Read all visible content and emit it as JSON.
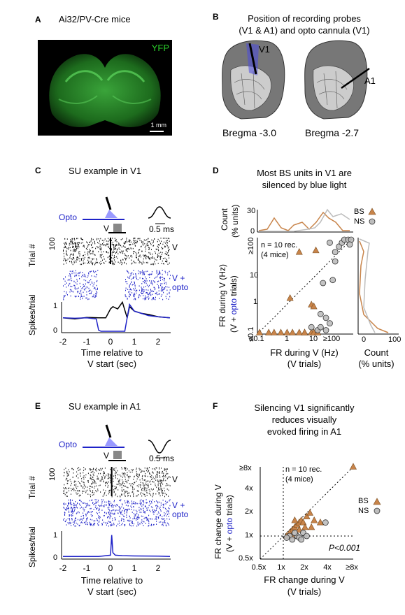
{
  "panelA": {
    "label": "A",
    "title": "Ai32/PV-Cre mice",
    "fluor_label": "YFP",
    "scalebar": "1 mm"
  },
  "panelB": {
    "label": "B",
    "title_line1": "Position of recording probes",
    "title_line2": "(V1 & A1) and opto cannula (V1)",
    "left_region": "V1",
    "right_region": "A1",
    "left_bregma": "Bregma -3.0",
    "right_bregma": "Bregma -2.7"
  },
  "panelC": {
    "label": "C",
    "title": "SU example in V1",
    "opto_label": "Opto",
    "stim_label": "V",
    "waveform_scale": "0.5 ms",
    "cond_v": "V",
    "cond_opto_line1": "V +",
    "cond_opto_line2": "opto",
    "ylabel_raster": "Trial #",
    "ylabel_psth": "Spikes/trial",
    "raster_tick": "100",
    "psth_ticks": [
      "0",
      "1"
    ],
    "xticks": [
      "-2",
      "-1",
      "0",
      "1",
      "2"
    ],
    "xlabel_line1": "Time relative to",
    "xlabel_line2": "V start (sec)"
  },
  "panelD": {
    "label": "D",
    "title_line1": "Most BS units in V1 are",
    "title_line2": "silenced by blue light",
    "note_line1": "n = 10 rec.",
    "note_line2": "(4 mice)",
    "legend_bs": "BS",
    "legend_ns": "NS",
    "top_ylabel_line1": "Count",
    "top_ylabel_line2": "(% units)",
    "top_yticks": [
      "0",
      "30"
    ],
    "yticks": [
      "≤0.1",
      "1",
      "10",
      "≥100"
    ],
    "xticks": [
      "≤0.1",
      "1",
      "10",
      "≥100"
    ],
    "ylabel_line1": "FR during V (Hz)",
    "ylabel_line2_pre": "(V + ",
    "ylabel_line2_opto": "opto",
    "ylabel_line2_post": " trials)",
    "xlabel_line1": "FR during V (Hz)",
    "xlabel_line2": "(V trials)",
    "side_xticks": [
      "0",
      "100"
    ],
    "side_xlabel_line1": "Count",
    "side_xlabel_line2": "(% units)"
  },
  "panelE": {
    "label": "E",
    "title": "SU example in A1",
    "opto_label": "Opto",
    "stim_label": "V",
    "waveform_scale": "0.5 ms",
    "cond_v": "V",
    "cond_opto_line1": "V +",
    "cond_opto_line2": "opto",
    "ylabel_raster": "Trial #",
    "ylabel_psth": "Spikes/trial",
    "raster_tick": "100",
    "psth_ticks": [
      "0",
      "1"
    ],
    "xticks": [
      "-2",
      "-1",
      "0",
      "1",
      "2"
    ],
    "xlabel_line1": "Time relative to",
    "xlabel_line2": "V start (sec)"
  },
  "panelF": {
    "label": "F",
    "title_line1": "Silencing V1 significantly",
    "title_line2": "reduces visually",
    "title_line3": "evoked firing in A1",
    "note_line1": "n = 10 rec.",
    "note_line2": "(4 mice)",
    "pvalue": "P<0.001",
    "legend_bs": "BS",
    "legend_ns": "NS",
    "yticks": [
      "0.5x",
      "1x",
      "2x",
      "4x",
      "≥8x"
    ],
    "xticks": [
      "0.5x",
      "1x",
      "2x",
      "4x",
      "≥8x"
    ],
    "ylabel_line1": "FR change during V",
    "ylabel_line2_pre": "(V + ",
    "ylabel_line2_opto": "opto",
    "ylabel_line2_post": " trials)",
    "xlabel_line1": "FR change during V",
    "xlabel_line2": "(V trials)"
  },
  "colors": {
    "bs": "#c8844a",
    "ns": "#bdbdbd",
    "opto": "#1e22c8",
    "yfp": "#2bd12b"
  },
  "chart_data": [
    {
      "panel": "C",
      "type": "line",
      "series": [
        {
          "name": "V",
          "x": [
            -2,
            -1.5,
            -1,
            -0.5,
            -0.2,
            0,
            0.1,
            0.3,
            0.5,
            0.7,
            0.8,
            1,
            1.3,
            1.6,
            2,
            2.5
          ],
          "y": [
            0.6,
            0.55,
            0.62,
            0.6,
            0.6,
            1.0,
            1.1,
            1.0,
            1.3,
            0.6,
            1.1,
            0.9,
            0.8,
            0.75,
            0.65,
            0.6
          ]
        },
        {
          "name": "V + opto",
          "x": [
            -2,
            -1.5,
            -1,
            -0.6,
            -0.5,
            -0.4,
            0.6,
            0.7,
            0.8,
            1,
            1.3,
            1.6,
            2,
            2.5
          ],
          "y": [
            0.6,
            0.58,
            0.6,
            0.55,
            0.05,
            0,
            0,
            0.6,
            1.2,
            0.9,
            0.8,
            0.7,
            0.65,
            0.6
          ]
        }
      ]
    },
    {
      "panel": "D",
      "type": "scatter",
      "xscale": "log",
      "yscale": "log",
      "xlim": [
        0.1,
        100
      ],
      "ylim": [
        0.1,
        100
      ],
      "series": [
        {
          "name": "BS",
          "points": [
            [
              0.1,
              0.1
            ],
            [
              0.2,
              0.1
            ],
            [
              0.3,
              0.1
            ],
            [
              0.5,
              0.1
            ],
            [
              0.8,
              0.1
            ],
            [
              1.2,
              0.1
            ],
            [
              2,
              0.1
            ],
            [
              3,
              0.1
            ],
            [
              5,
              0.1
            ],
            [
              6,
              0.1
            ],
            [
              1,
              1.3
            ],
            [
              5,
              0.8
            ],
            [
              6,
              0.7
            ],
            [
              2,
              40
            ],
            [
              7,
              45
            ],
            [
              8,
              0.1
            ],
            [
              3,
              0.1
            ]
          ]
        },
        {
          "name": "NS",
          "points": [
            [
              5,
              0.15
            ],
            [
              8,
              0.12
            ],
            [
              10,
              0.4
            ],
            [
              15,
              0.3
            ],
            [
              20,
              0.2
            ],
            [
              12,
              4
            ],
            [
              25,
              5
            ],
            [
              30,
              20
            ],
            [
              40,
              60
            ],
            [
              50,
              80
            ],
            [
              60,
              100
            ],
            [
              80,
              100
            ],
            [
              100,
              100
            ],
            [
              30,
              40
            ],
            [
              90,
              70
            ],
            [
              20,
              80
            ],
            [
              10,
              0.15
            ],
            [
              15,
              0.12
            ]
          ]
        }
      ]
    },
    {
      "panel": "E",
      "type": "line",
      "series": [
        {
          "name": "V + opto",
          "x": [
            -2,
            -1,
            -0.5,
            0,
            0.05,
            0.1,
            0.2,
            0.5,
            1,
            2,
            2.5
          ],
          "y": [
            0.05,
            0.05,
            0.05,
            0.1,
            0.9,
            0.2,
            0.1,
            0.08,
            0.07,
            0.06,
            0.05
          ]
        }
      ]
    },
    {
      "panel": "F",
      "type": "scatter",
      "xscale": "log2",
      "yscale": "log2",
      "xlim": [
        0.5,
        8
      ],
      "ylim": [
        0.5,
        8
      ],
      "series": [
        {
          "name": "BS",
          "points": [
            [
              8,
              8
            ],
            [
              1.3,
              1.2
            ],
            [
              1.4,
              1.3
            ],
            [
              1.5,
              1.4
            ],
            [
              1.6,
              1.5
            ],
            [
              1.7,
              1.6
            ],
            [
              1.8,
              1.5
            ],
            [
              2,
              1.8
            ],
            [
              2.2,
              2
            ],
            [
              2.5,
              1.6
            ],
            [
              3,
              1.5
            ],
            [
              1.2,
              1.1
            ],
            [
              1.5,
              1.0
            ],
            [
              1.3,
              1.0
            ],
            [
              1.6,
              1.2
            ],
            [
              1.9,
              1.3
            ],
            [
              1.4,
              1.6
            ],
            [
              2.3,
              1.3
            ],
            [
              1.1,
              1.0
            ]
          ]
        },
        {
          "name": "NS",
          "points": [
            [
              1.2,
              1.0
            ],
            [
              1.3,
              0.9
            ],
            [
              1.5,
              1.0
            ],
            [
              1.6,
              0.95
            ],
            [
              1.8,
              1.1
            ],
            [
              2.0,
              1.0
            ],
            [
              1.4,
              1.1
            ],
            [
              3.5,
              1.5
            ],
            [
              1.7,
              0.9
            ],
            [
              1.1,
              0.95
            ]
          ]
        }
      ]
    }
  ]
}
